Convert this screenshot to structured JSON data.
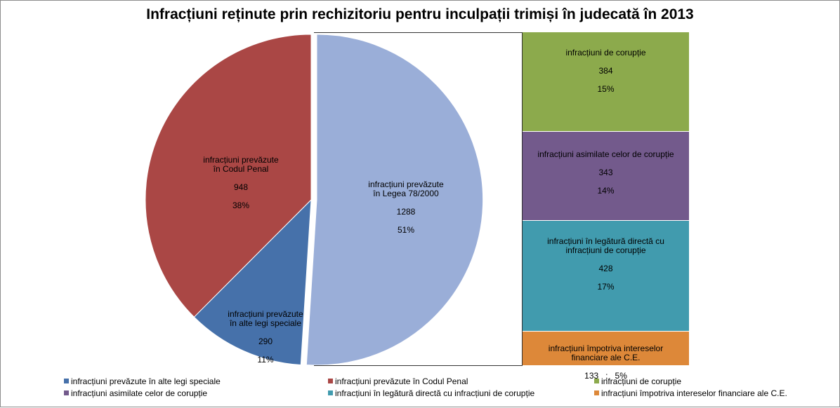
{
  "chart_data": [
    {
      "type": "pie",
      "title": "Infracțiuni reținute prin rechizitoriu pentru inculpații trimiși în judecată în 2013",
      "slices": [
        {
          "key": "lege",
          "label": "infracțiuni  prevăzute\nîn Legea 78/2000",
          "value": 1288,
          "percent": "51%",
          "color": "#9AAED8"
        },
        {
          "key": "alte",
          "label": "infracțiuni  prevăzute\nîn alte legi speciale",
          "value": 290,
          "percent": "11%",
          "color": "#4671AA"
        },
        {
          "key": "cod",
          "label": "infracțiuni  prevăzute\nîn Codul Penal",
          "value": 948,
          "percent": "38%",
          "color": "#AA4745"
        }
      ]
    },
    {
      "type": "bar",
      "stacked": true,
      "segments": [
        {
          "key": "coruptie",
          "label": "infracțiuni  de corupție",
          "value": 384,
          "percent": "15%",
          "color": "#8CAA4C"
        },
        {
          "key": "asimilate",
          "label": "infracțiuni  asimilate celor de corupție",
          "value": 343,
          "percent": "14%",
          "color": "#735A8C"
        },
        {
          "key": "legatura",
          "label": "infracțiuni  în legătură directă cu\ninfracțiuni  de corupție",
          "value": 428,
          "percent": "17%",
          "color": "#419BAE"
        },
        {
          "key": "interese",
          "label": "infracțiuni  împotriva intereselor\nfinanciare  ale C.E.",
          "value": 133,
          "percent": "5%",
          "separator": "   ;   ",
          "color": "#DD8839"
        }
      ]
    }
  ],
  "legend": [
    {
      "label": "infracțiuni prevăzute în alte legi speciale",
      "color": "#4671AA"
    },
    {
      "label": "infracțiuni prevăzute în Codul Penal",
      "color": "#AA4745"
    },
    {
      "label": "infracțiuni de corupție",
      "color": "#8CAA4C"
    },
    {
      "label": "infracțiuni asimilate celor de corupție",
      "color": "#735A8C"
    },
    {
      "label": "infracțiuni în legătură directă cu infracțiuni de corupție",
      "color": "#419BAE"
    },
    {
      "label": "infracțiuni împotriva intereselor financiare ale C.E.",
      "color": "#DD8839"
    }
  ]
}
